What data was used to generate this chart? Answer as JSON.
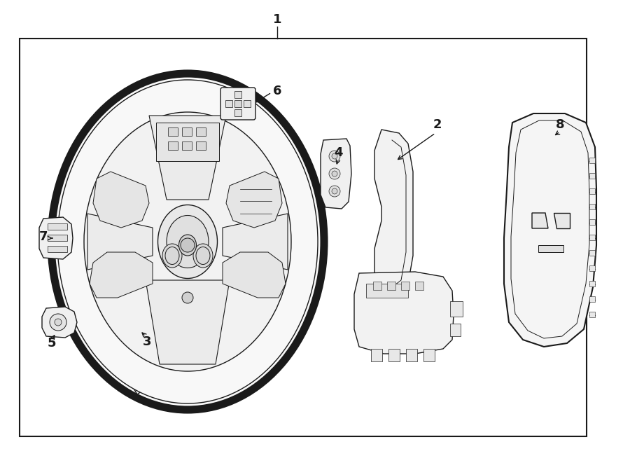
{
  "bg_color": "#ffffff",
  "line_color": "#1a1a1a",
  "fill_light": "#ffffff",
  "fill_gray": "#f0f0f0",
  "border_lw": 1.5,
  "fig_w": 9.0,
  "fig_h": 6.61,
  "dpi": 100
}
